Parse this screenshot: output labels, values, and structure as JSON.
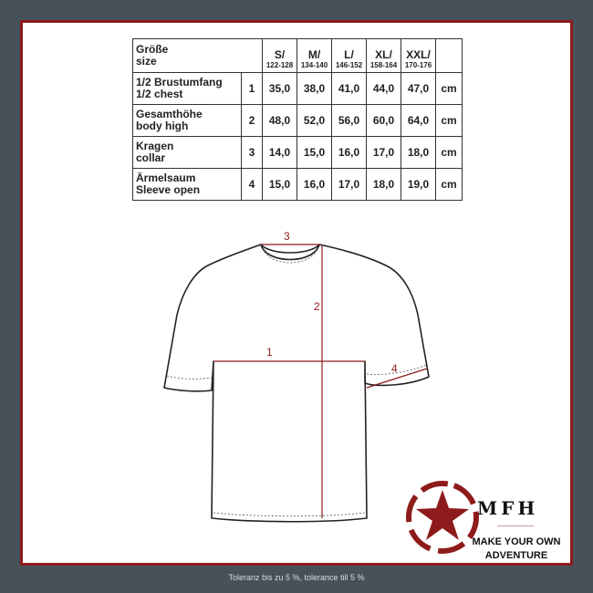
{
  "table": {
    "header": {
      "label_de": "Größe",
      "label_en": "size",
      "sizes": [
        {
          "size": "S/",
          "range": "122-128"
        },
        {
          "size": "M/",
          "range": "134-140"
        },
        {
          "size": "L/",
          "range": "146-152"
        },
        {
          "size": "XL/",
          "range": "158-164"
        },
        {
          "size": "XXL/",
          "range": "170-176"
        }
      ]
    },
    "rows": [
      {
        "de": "1/2 Brustumfang",
        "en": "1/2 chest",
        "num": "1",
        "values": [
          "35,0",
          "38,0",
          "41,0",
          "44,0",
          "47,0"
        ],
        "unit": "cm"
      },
      {
        "de": "Gesamthöhe",
        "en": "body high",
        "num": "2",
        "values": [
          "48,0",
          "52,0",
          "56,0",
          "60,0",
          "64,0"
        ],
        "unit": "cm"
      },
      {
        "de": "Kragen",
        "en": "collar",
        "num": "3",
        "values": [
          "14,0",
          "15,0",
          "16,0",
          "17,0",
          "18,0"
        ],
        "unit": "cm"
      },
      {
        "de": "Ärmelsaum",
        "en": "Sleeve open",
        "num": "4",
        "values": [
          "15,0",
          "16,0",
          "17,0",
          "18,0",
          "19,0"
        ],
        "unit": "cm"
      }
    ]
  },
  "diagram": {
    "labels": [
      "1",
      "2",
      "3",
      "4"
    ],
    "measure_color": "#8e1b1b"
  },
  "logo": {
    "brand": "MFH",
    "tagline1": "MAKE YOUR OWN",
    "tagline2": "ADVENTURE",
    "color": "#8e1b1b"
  },
  "footer": "Toleranz bis zu 5 %, tolerance till 5 %",
  "colors": {
    "background": "#46515a",
    "frame": "#8e1b1b"
  }
}
